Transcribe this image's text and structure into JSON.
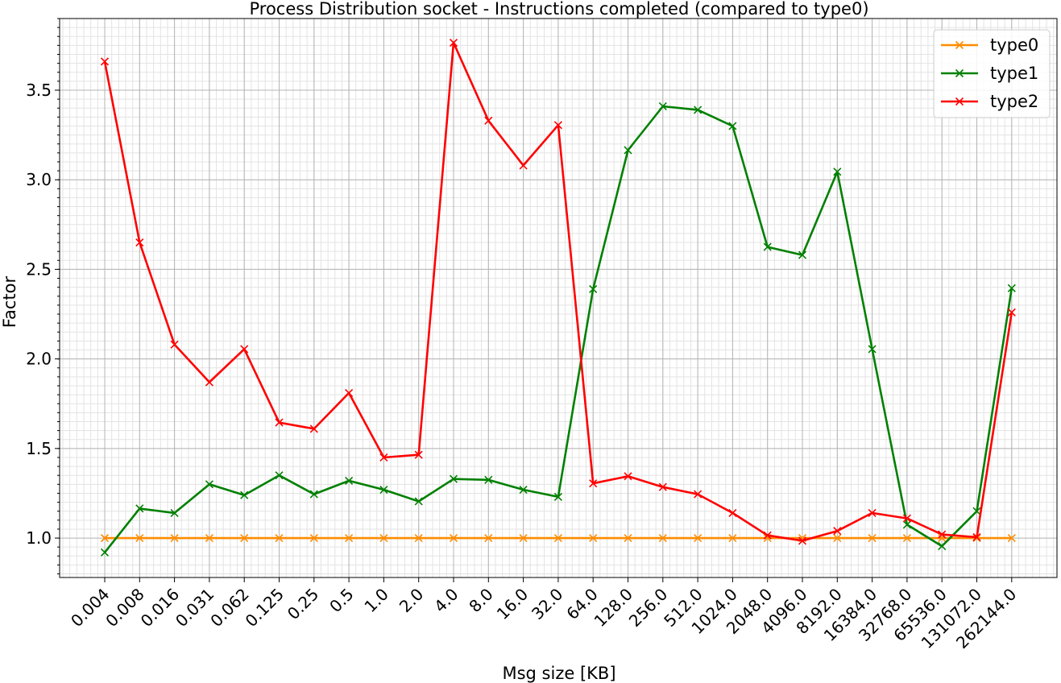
{
  "chart_data": {
    "type": "line",
    "title": "Process Distribution socket - Instructions completed (compared to type0)",
    "xlabel": "Msg size [KB]",
    "ylabel": "Factor",
    "categories": [
      "0.004",
      "0.008",
      "0.016",
      "0.031",
      "0.062",
      "0.125",
      "0.25",
      "0.5",
      "1.0",
      "2.0",
      "4.0",
      "8.0",
      "16.0",
      "32.0",
      "64.0",
      "128.0",
      "256.0",
      "512.0",
      "1024.0",
      "2048.0",
      "4096.0",
      "8192.0",
      "16384.0",
      "32768.0",
      "65536.0",
      "131072.0",
      "262144.0"
    ],
    "ylim": [
      0.78,
      3.9
    ],
    "yticks": [
      "1.0",
      "1.5",
      "2.0",
      "2.5",
      "3.0",
      "3.5"
    ],
    "grid": true,
    "legend_position": "top-right",
    "series": [
      {
        "name": "type0",
        "color": "#ff8c00",
        "marker": "x",
        "values": [
          1.0,
          1.0,
          1.0,
          1.0,
          1.0,
          1.0,
          1.0,
          1.0,
          1.0,
          1.0,
          1.0,
          1.0,
          1.0,
          1.0,
          1.0,
          1.0,
          1.0,
          1.0,
          1.0,
          1.0,
          1.0,
          1.0,
          1.0,
          1.0,
          1.0,
          1.0,
          1.0
        ]
      },
      {
        "name": "type1",
        "color": "#008000",
        "marker": "x",
        "values": [
          0.92,
          1.165,
          1.14,
          1.3,
          1.24,
          1.35,
          1.245,
          1.32,
          1.27,
          1.205,
          1.33,
          1.325,
          1.27,
          1.23,
          2.39,
          3.165,
          3.41,
          3.39,
          3.3,
          2.625,
          2.58,
          3.045,
          2.055,
          1.075,
          0.955,
          1.15,
          2.395
        ]
      },
      {
        "name": "type2",
        "color": "#ff0000",
        "marker": "x",
        "values": [
          3.66,
          2.65,
          2.08,
          1.87,
          2.055,
          1.645,
          1.61,
          1.81,
          1.45,
          1.465,
          3.765,
          3.33,
          3.08,
          3.305,
          1.305,
          1.345,
          1.285,
          1.245,
          1.14,
          1.015,
          0.985,
          1.04,
          1.14,
          1.11,
          1.02,
          1.005,
          2.26
        ]
      }
    ]
  }
}
